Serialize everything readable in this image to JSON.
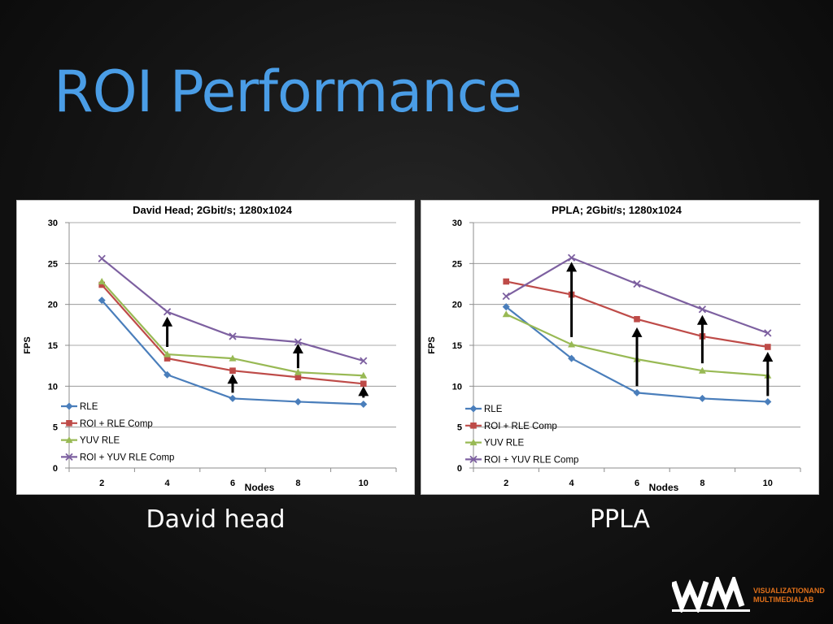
{
  "slide": {
    "title": "ROI Performance",
    "captions": [
      "David head",
      "PPLA"
    ],
    "logo": {
      "line1": "VISUALIZATIONAND",
      "line2": "MULTIMEDIALAB",
      "accent": "#e0701a"
    }
  },
  "chart_data": [
    {
      "type": "line",
      "title": "David Head; 2Gbit/s; 1280x1024",
      "xlabel": "Nodes",
      "ylabel": "FPS",
      "categories": [
        "2",
        "4",
        "6",
        "8",
        "10"
      ],
      "ylim": [
        0,
        30
      ],
      "yticks": [
        0,
        5,
        10,
        15,
        20,
        25,
        30
      ],
      "grid": true,
      "legend": "bottom-left",
      "series": [
        {
          "name": "RLE",
          "values": [
            20.5,
            11.4,
            8.5,
            8.1,
            7.8
          ],
          "color": "#4a7ebb",
          "marker": "diamond"
        },
        {
          "name": "ROI + RLE Comp",
          "values": [
            22.4,
            13.4,
            11.9,
            11.1,
            10.3
          ],
          "color": "#be4b48",
          "marker": "square"
        },
        {
          "name": "YUV RLE",
          "values": [
            22.8,
            13.9,
            13.4,
            11.7,
            11.3
          ],
          "color": "#98b954",
          "marker": "triangle"
        },
        {
          "name": "ROI + YUV RLE Comp",
          "values": [
            25.6,
            19.1,
            16.1,
            15.4,
            13.1
          ],
          "color": "#7d60a0",
          "marker": "x"
        }
      ],
      "annotations": [
        {
          "type": "arrow",
          "x": "4",
          "from": 14.8,
          "to": 18.3
        },
        {
          "type": "arrow",
          "x": "6",
          "from": 9.2,
          "to": 11.3
        },
        {
          "type": "arrow",
          "x": "8",
          "from": 12.2,
          "to": 15.0
        },
        {
          "type": "arrow",
          "x": "10",
          "from": 8.6,
          "to": 9.8
        }
      ]
    },
    {
      "type": "line",
      "title": "PPLA; 2Gbit/s; 1280x1024",
      "xlabel": "Nodes",
      "ylabel": "FPS",
      "categories": [
        "2",
        "4",
        "6",
        "8",
        "10"
      ],
      "ylim": [
        0,
        30
      ],
      "yticks": [
        0,
        5,
        10,
        15,
        20,
        25,
        30
      ],
      "grid": true,
      "legend": "bottom-left",
      "series": [
        {
          "name": "RLE",
          "values": [
            19.7,
            13.4,
            9.2,
            8.5,
            8.1
          ],
          "color": "#4a7ebb",
          "marker": "diamond"
        },
        {
          "name": "ROI + RLE Comp",
          "values": [
            22.8,
            21.2,
            18.2,
            16.1,
            14.8
          ],
          "color": "#be4b48",
          "marker": "square"
        },
        {
          "name": "YUV RLE",
          "values": [
            18.8,
            15.1,
            13.3,
            11.9,
            11.3
          ],
          "color": "#98b954",
          "marker": "triangle"
        },
        {
          "name": "ROI + YUV RLE Comp",
          "values": [
            21.0,
            25.7,
            22.5,
            19.4,
            16.5
          ],
          "color": "#7d60a0",
          "marker": "x"
        }
      ],
      "annotations": [
        {
          "type": "arrow",
          "x": "4",
          "from": 16.0,
          "to": 25.0
        },
        {
          "type": "arrow",
          "x": "6",
          "from": 10.0,
          "to": 17.0
        },
        {
          "type": "arrow",
          "x": "8",
          "from": 12.8,
          "to": 18.5
        },
        {
          "type": "arrow",
          "x": "10",
          "from": 8.8,
          "to": 14.0
        }
      ]
    }
  ]
}
